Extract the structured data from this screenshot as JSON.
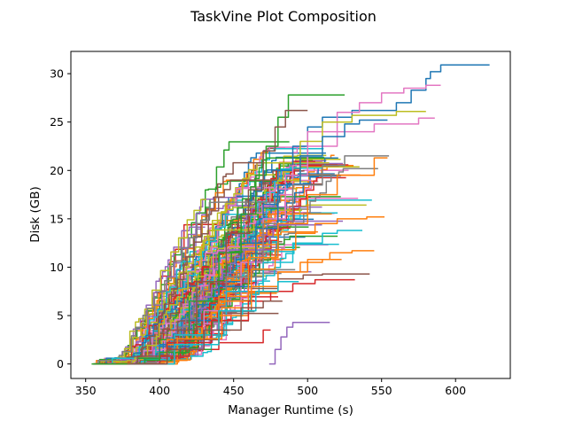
{
  "chart_data": {
    "type": "line",
    "title": "TaskVine Plot Composition",
    "xlabel": "Manager Runtime (s)",
    "ylabel": "Disk (GB)",
    "xlim": [
      340,
      637
    ],
    "ylim": [
      -1.5,
      32.3
    ],
    "x_ticks": [
      350,
      400,
      450,
      500,
      550,
      600
    ],
    "y_ticks": [
      0,
      5,
      10,
      15,
      20,
      25,
      30
    ],
    "x_tick_labels": [
      "350",
      "400",
      "450",
      "500",
      "550",
      "600"
    ],
    "y_tick_labels": [
      "0",
      "5",
      "10",
      "15",
      "20",
      "25",
      "30"
    ],
    "grid": false,
    "legend": "none",
    "palette": [
      "#1f77b4",
      "#ff7f0e",
      "#2ca02c",
      "#d62728",
      "#9467bd",
      "#8c564b",
      "#e377c2",
      "#7f7f7f",
      "#bcbd22",
      "#17becf"
    ],
    "num_generated_series": 170,
    "series": [
      {
        "color": "#1f77b4",
        "x": [
          360,
          385,
          400,
          420,
          440,
          455,
          470,
          480,
          490,
          500,
          510,
          530,
          560,
          570,
          580,
          583,
          590,
          623
        ],
        "y": [
          0,
          0.6,
          1.8,
          4.5,
          8.5,
          12.5,
          16.5,
          20,
          22.5,
          24.5,
          25.5,
          26.2,
          27.0,
          28.3,
          29.5,
          30.2,
          30.9,
          30.9
        ]
      },
      {
        "color": "#2ca02c",
        "x": [
          362,
          385,
          400,
          420,
          440,
          455,
          465,
          472,
          480,
          487,
          525
        ],
        "y": [
          0,
          0.6,
          2.5,
          6.5,
          11.5,
          15.5,
          19.5,
          22.5,
          25.5,
          27.8,
          27.8
        ]
      },
      {
        "color": "#e377c2",
        "x": [
          365,
          400,
          430,
          455,
          470,
          480,
          490,
          500,
          520,
          535,
          550,
          565,
          580,
          590
        ],
        "y": [
          0,
          1.5,
          5.5,
          10.5,
          14.5,
          17.5,
          20.5,
          24.0,
          26.0,
          27.0,
          28.0,
          28.5,
          28.8,
          28.8
        ]
      },
      {
        "color": "#8c564b",
        "x": [
          360,
          385,
          405,
          425,
          445,
          460,
          470,
          478,
          485,
          490,
          500
        ],
        "y": [
          0,
          0.8,
          3.5,
          8.5,
          13.5,
          18.0,
          22.0,
          24.5,
          26.2,
          26.2,
          26.2
        ]
      },
      {
        "color": "#9467bd",
        "x": [
          474,
          478,
          482,
          486,
          490,
          500,
          515
        ],
        "y": [
          0,
          1.5,
          2.8,
          3.8,
          4.3,
          4.3,
          4.3
        ]
      },
      {
        "color": "#bcbd22",
        "x": [
          360,
          400,
          440,
          465,
          480,
          495,
          510,
          530,
          560,
          580
        ],
        "y": [
          0,
          2,
          8,
          14,
          19,
          23,
          25,
          25.7,
          26.1,
          26.1
        ]
      },
      {
        "color": "#e377c2",
        "x": [
          365,
          405,
          445,
          470,
          485,
          500,
          520,
          545,
          575,
          586
        ],
        "y": [
          0,
          2.5,
          9,
          15,
          19.5,
          22.5,
          24,
          24.8,
          25.4,
          25.4
        ]
      },
      {
        "color": "#1f77b4",
        "x": [
          360,
          400,
          440,
          465,
          480,
          495,
          510,
          525,
          535,
          554
        ],
        "y": [
          0,
          2,
          8,
          14,
          18.5,
          21.5,
          23.5,
          24.8,
          25.2,
          25.2
        ]
      },
      {
        "color": "#7f7f7f",
        "x": [
          368,
          410,
          445,
          470,
          490,
          510,
          525,
          555
        ],
        "y": [
          0,
          3,
          9,
          14.5,
          18.5,
          20.5,
          21.5,
          21.5
        ]
      },
      {
        "color": "#ff7f0e",
        "x": [
          370,
          405,
          440,
          460,
          480,
          500,
          520,
          545,
          554
        ],
        "y": [
          0,
          2,
          7,
          11,
          14.5,
          17.5,
          19.5,
          21.3,
          21.3
        ]
      },
      {
        "color": "#17becf",
        "x": [
          372,
          410,
          445,
          470,
          490,
          510,
          520,
          537
        ],
        "y": [
          0,
          3,
          7.5,
          10.5,
          12.5,
          13.5,
          13.8,
          13.8
        ]
      },
      {
        "color": "#ff7f0e",
        "x": [
          374,
          410,
          440,
          460,
          480,
          500,
          515,
          530,
          545
        ],
        "y": [
          0,
          2,
          5,
          7.5,
          9.5,
          10.8,
          11.5,
          11.7,
          11.7
        ]
      },
      {
        "color": "#ff7f0e",
        "x": [
          370,
          405,
          440,
          462,
          478,
          492,
          505,
          520,
          540,
          552
        ],
        "y": [
          0,
          2.5,
          6.5,
          9.8,
          11.8,
          13.5,
          14.5,
          15,
          15.2,
          15.2
        ]
      },
      {
        "color": "#d62728",
        "x": [
          372,
          405,
          435,
          460,
          475,
          490,
          505,
          520,
          532
        ],
        "y": [
          0,
          2.2,
          4.5,
          6.5,
          7.5,
          8.3,
          8.7,
          8.7,
          8.7
        ]
      },
      {
        "color": "#8c564b",
        "x": [
          374,
          410,
          440,
          462,
          480,
          497,
          510,
          525,
          542
        ],
        "y": [
          0,
          2.5,
          5.5,
          7.8,
          8.8,
          9.2,
          9.3,
          9.3,
          9.3
        ]
      },
      {
        "color": "#ff7f0e",
        "x": [
          376,
          412,
          442,
          462,
          480,
          495,
          510,
          523
        ],
        "y": [
          0,
          2.6,
          5.8,
          8.0,
          9.5,
          10.5,
          10.8,
          10.8
        ]
      },
      {
        "color": "#d62728",
        "x": [
          356,
          362,
          400,
          420,
          440,
          470,
          475
        ],
        "y": [
          0,
          0,
          0.8,
          1.5,
          2.2,
          3.5,
          3.5
        ]
      },
      {
        "color": "#2ca02c",
        "x": [
          354,
          365,
          390,
          400,
          420,
          435
        ],
        "y": [
          0,
          0,
          0.4,
          1.2,
          1.5,
          1.5
        ]
      },
      {
        "color": "#17becf",
        "x": [
          380,
          410,
          440,
          465,
          480,
          494
        ],
        "y": [
          0,
          2,
          5.5,
          7.5,
          8.5,
          8.5
        ]
      },
      {
        "color": "#8c564b",
        "x": [
          378,
          405,
          430,
          455,
          470,
          483
        ],
        "y": [
          0,
          1.5,
          3.5,
          5.8,
          6.5,
          6.5
        ]
      }
    ]
  }
}
